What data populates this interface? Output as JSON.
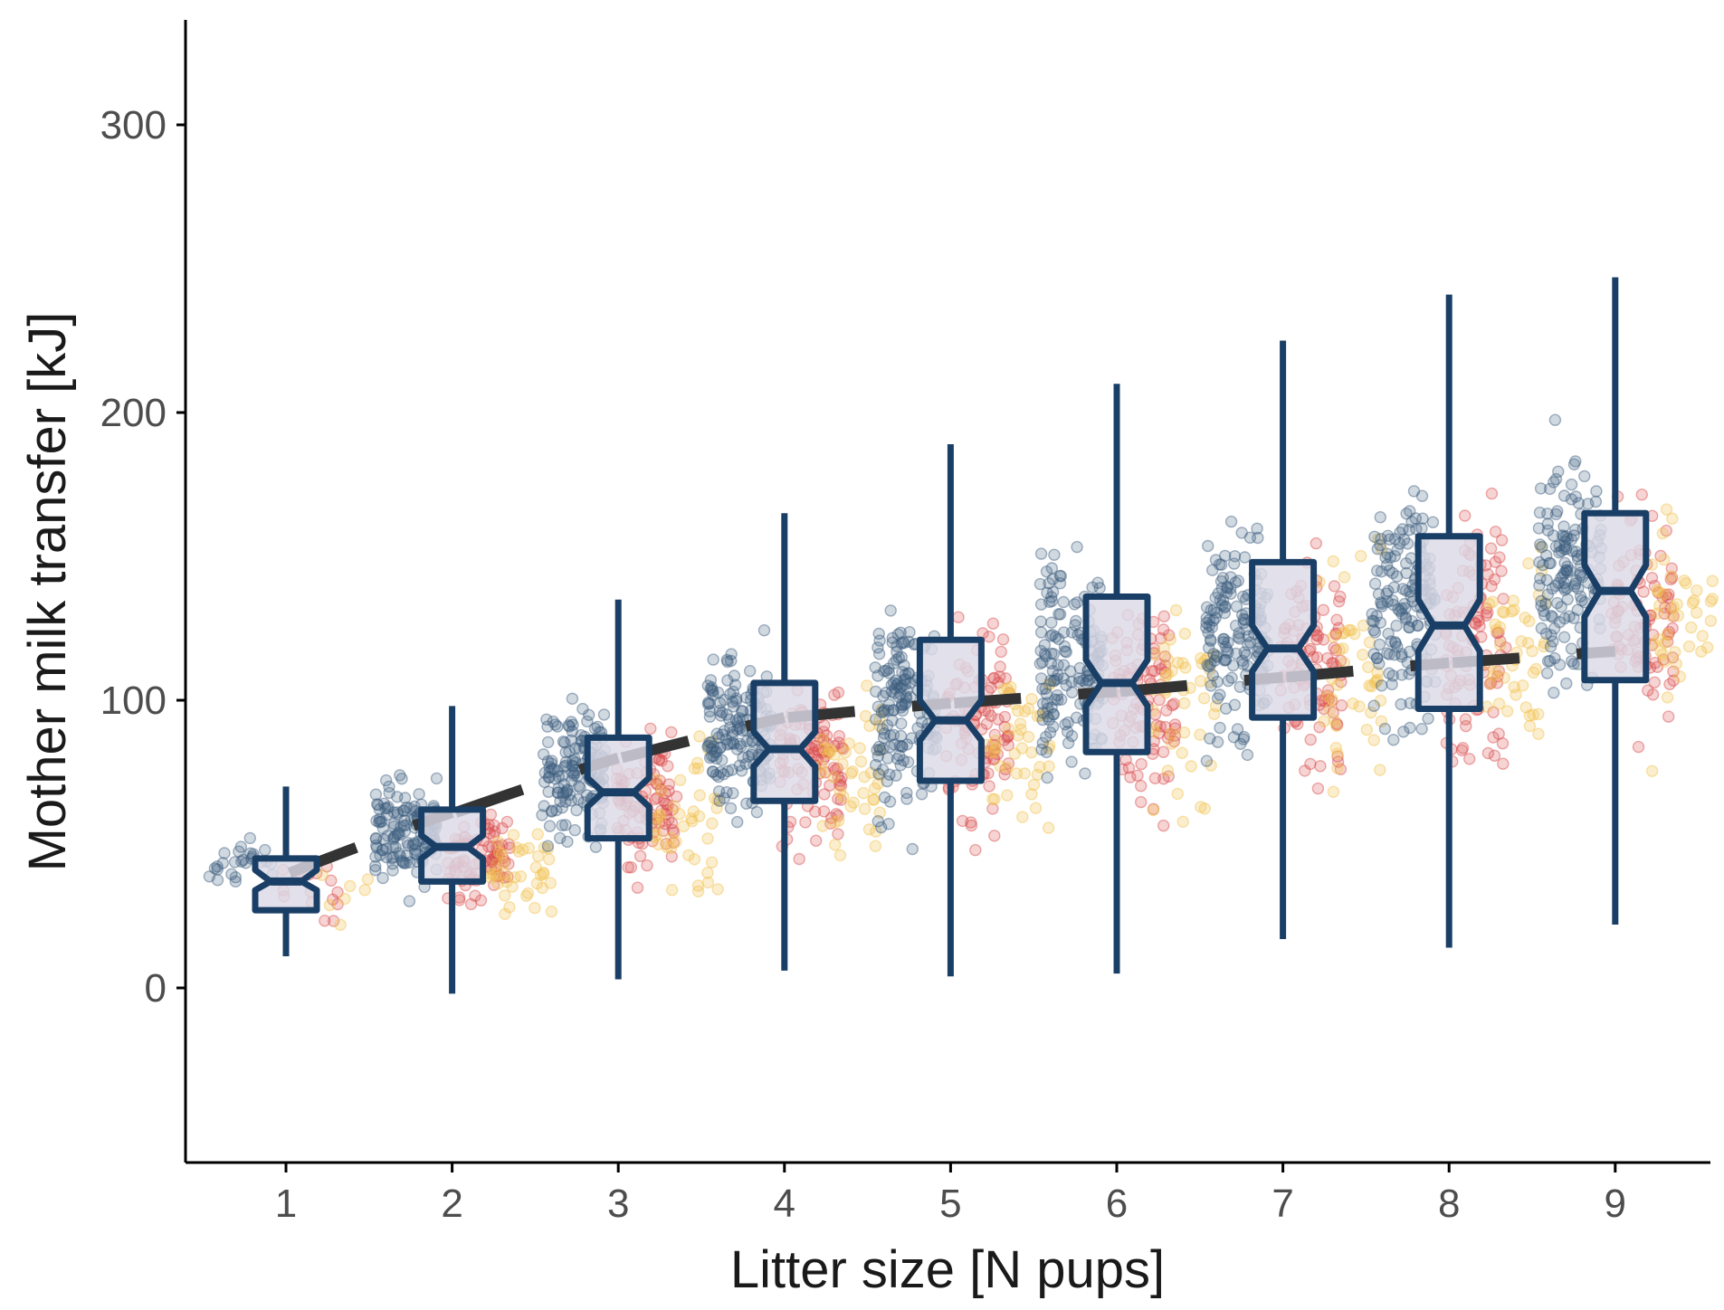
{
  "chart_data": {
    "type": "box",
    "title": "",
    "xlabel": "Litter size [N pups]",
    "ylabel": "Mother milk transfer [kJ]",
    "categories": [
      "1",
      "2",
      "3",
      "4",
      "5",
      "6",
      "7",
      "8",
      "9"
    ],
    "yticks": [
      0,
      100,
      200,
      300
    ],
    "ylim": [
      -60,
      335
    ],
    "boxplot": {
      "color": "#1a3f66",
      "fill": "#dcdae6",
      "notched": true,
      "boxes": [
        {
          "x": 1,
          "whisker_low": 11,
          "q1": 27,
          "median": 37,
          "q3": 45,
          "whisker_high": 70,
          "notch_low": 34,
          "notch_high": 41
        },
        {
          "x": 2,
          "whisker_low": -2,
          "q1": 37,
          "median": 49,
          "q3": 62,
          "whisker_high": 98,
          "notch_low": 45,
          "notch_high": 53
        },
        {
          "x": 3,
          "whisker_low": 3,
          "q1": 52,
          "median": 68,
          "q3": 87,
          "whisker_high": 135,
          "notch_low": 63,
          "notch_high": 73
        },
        {
          "x": 4,
          "whisker_low": 6,
          "q1": 65,
          "median": 83,
          "q3": 106,
          "whisker_high": 165,
          "notch_low": 77,
          "notch_high": 89
        },
        {
          "x": 5,
          "whisker_low": 4,
          "q1": 72,
          "median": 93,
          "q3": 121,
          "whisker_high": 189,
          "notch_low": 86,
          "notch_high": 100
        },
        {
          "x": 6,
          "whisker_low": 5,
          "q1": 82,
          "median": 106,
          "q3": 136,
          "whisker_high": 210,
          "notch_low": 98,
          "notch_high": 114
        },
        {
          "x": 7,
          "whisker_low": 17,
          "q1": 94,
          "median": 118,
          "q3": 148,
          "whisker_high": 225,
          "notch_low": 110,
          "notch_high": 126
        },
        {
          "x": 8,
          "whisker_low": 14,
          "q1": 97,
          "median": 126,
          "q3": 157,
          "whisker_high": 241,
          "notch_low": 117,
          "notch_high": 135
        },
        {
          "x": 9,
          "whisker_low": 22,
          "q1": 107,
          "median": 138,
          "q3": 165,
          "whisker_high": 247,
          "notch_low": 129,
          "notch_high": 147
        }
      ]
    },
    "trend_line": {
      "color": "#333333",
      "style": "dashed",
      "points": [
        {
          "x": 1,
          "y": 40
        },
        {
          "x": 2,
          "y": 61
        },
        {
          "x": 3,
          "y": 80
        },
        {
          "x": 4,
          "y": 94
        },
        {
          "x": 5,
          "y": 99
        },
        {
          "x": 6,
          "y": 103
        },
        {
          "x": 7,
          "y": 108
        },
        {
          "x": 8,
          "y": 113
        },
        {
          "x": 9,
          "y": 117
        }
      ]
    },
    "jitter_points": {
      "palette": [
        "#3a5a7c",
        "#d94a4a",
        "#f2c14e"
      ],
      "per_category_counts": [
        50,
        260,
        280,
        300,
        300,
        300,
        300,
        300,
        280
      ]
    },
    "grid": false,
    "legend": "none"
  }
}
